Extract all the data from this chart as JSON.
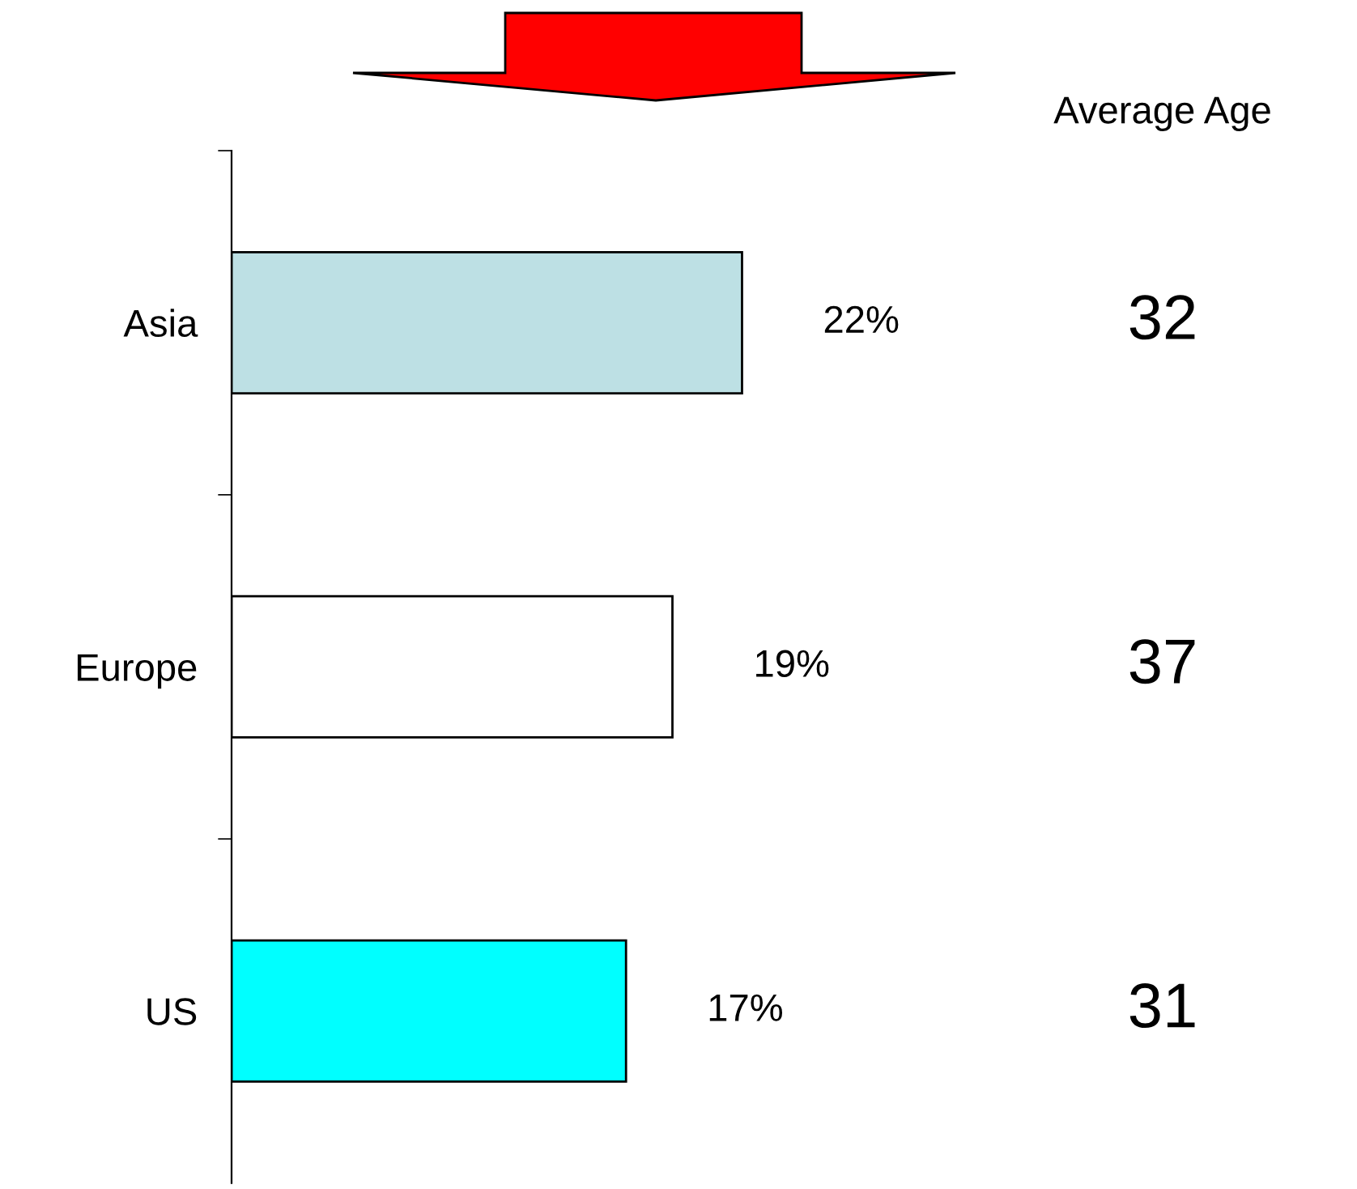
{
  "chart_data": {
    "type": "bar",
    "orientation": "horizontal",
    "categories": [
      "Asia",
      "Europe",
      "US"
    ],
    "values": [
      22,
      19,
      17
    ],
    "colors": [
      "#bde0e4",
      "#ffffff",
      "#00ffff"
    ],
    "value_labels": [
      "22%",
      "19%",
      "17%"
    ],
    "tick_labels": "y",
    "grid": false,
    "legend": false,
    "annotations": [
      "Average Age",
      "32",
      "37",
      "31"
    ]
  }
}
